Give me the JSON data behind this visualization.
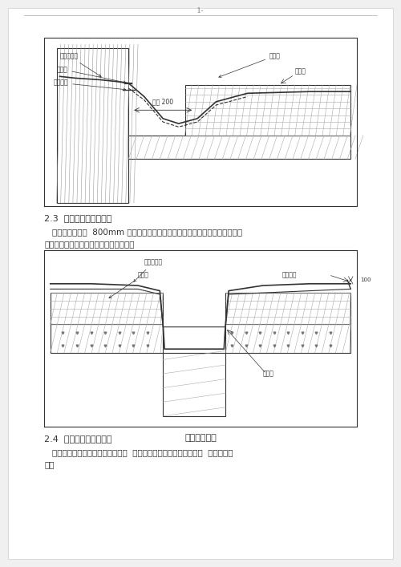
{
  "page_number": "1-",
  "section_23_title": "2.3  无组织排水槽口办理",
  "section_23_text1": "无组织排水槽口  800mm 范围内的卷材应采用满粘法；卷材收头应固定密封，",
  "section_23_text2": "槽口下端应做防水办理，以以下图所示：",
  "section_24_title": "2.4  高低屋面变形缝办理",
  "section_24_text1": "高低跨内排水天沟与立墙交接处，  应采用能适应变形的密封办理，  以以下图所",
  "section_24_text2": "示：",
  "fig1_caption": "",
  "fig2_caption": "屋面槽口构造",
  "bg_color": "#f5f5f5",
  "line_color": "#888888",
  "drawing_line_color": "#333333",
  "hatch_color": "#555555",
  "text_color": "#333333",
  "label_color": "#444444"
}
